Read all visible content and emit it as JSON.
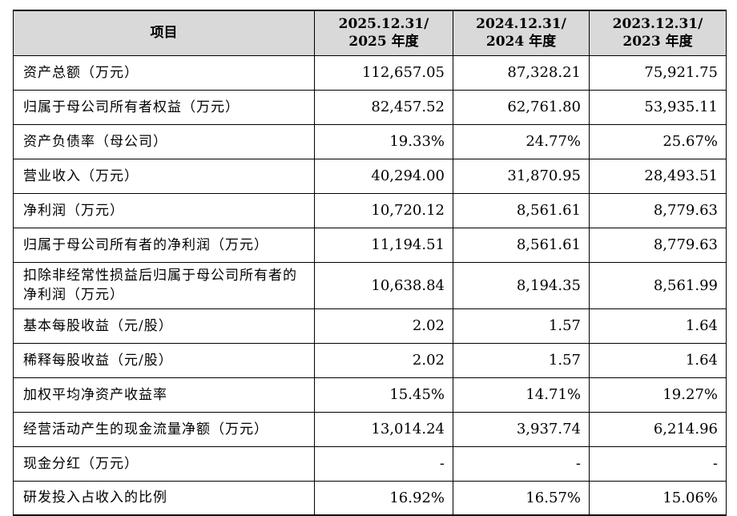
{
  "table": {
    "header": {
      "item": "项目",
      "col1_line1": "2025.12.31/",
      "col1_line2": "2025 年度",
      "col2_line1": "2024.12.31/",
      "col2_line2": "2024 年度",
      "col3_line1": "2023.12.31/",
      "col3_line2": "2023 年度"
    },
    "rows": [
      {
        "label": "资产总额（万元）",
        "v2025": "112,657.05",
        "v2024": "87,328.21",
        "v2023": "75,921.75"
      },
      {
        "label": "归属于母公司所有者权益（万元）",
        "v2025": "82,457.52",
        "v2024": "62,761.80",
        "v2023": "53,935.11"
      },
      {
        "label": "资产负债率（母公司）",
        "v2025": "19.33%",
        "v2024": "24.77%",
        "v2023": "25.67%"
      },
      {
        "label": "营业收入（万元）",
        "v2025": "40,294.00",
        "v2024": "31,870.95",
        "v2023": "28,493.51"
      },
      {
        "label": "净利润（万元）",
        "v2025": "10,720.12",
        "v2024": "8,561.61",
        "v2023": "8,779.63"
      },
      {
        "label": "归属于母公司所有者的净利润（万元）",
        "v2025": "11,194.51",
        "v2024": "8,561.61",
        "v2023": "8,779.63"
      },
      {
        "label": "扣除非经常性损益后归属于母公司所有者的净利润（万元）",
        "v2025": "10,638.84",
        "v2024": "8,194.35",
        "v2023": "8,561.99"
      },
      {
        "label": "基本每股收益（元/股）",
        "v2025": "2.02",
        "v2024": "1.57",
        "v2023": "1.64"
      },
      {
        "label": "稀释每股收益（元/股）",
        "v2025": "2.02",
        "v2024": "1.57",
        "v2023": "1.64"
      },
      {
        "label": "加权平均净资产收益率",
        "v2025": "15.45%",
        "v2024": "14.71%",
        "v2023": "19.27%"
      },
      {
        "label": "经营活动产生的现金流量净额（万元）",
        "v2025": "13,014.24",
        "v2024": "3,937.74",
        "v2023": "6,214.96"
      },
      {
        "label": "现金分红（万元）",
        "v2025": "-",
        "v2024": "-",
        "v2023": "-"
      },
      {
        "label": "研发投入占收入的比例",
        "v2025": "16.92%",
        "v2024": "16.57%",
        "v2023": "15.06%"
      }
    ]
  }
}
